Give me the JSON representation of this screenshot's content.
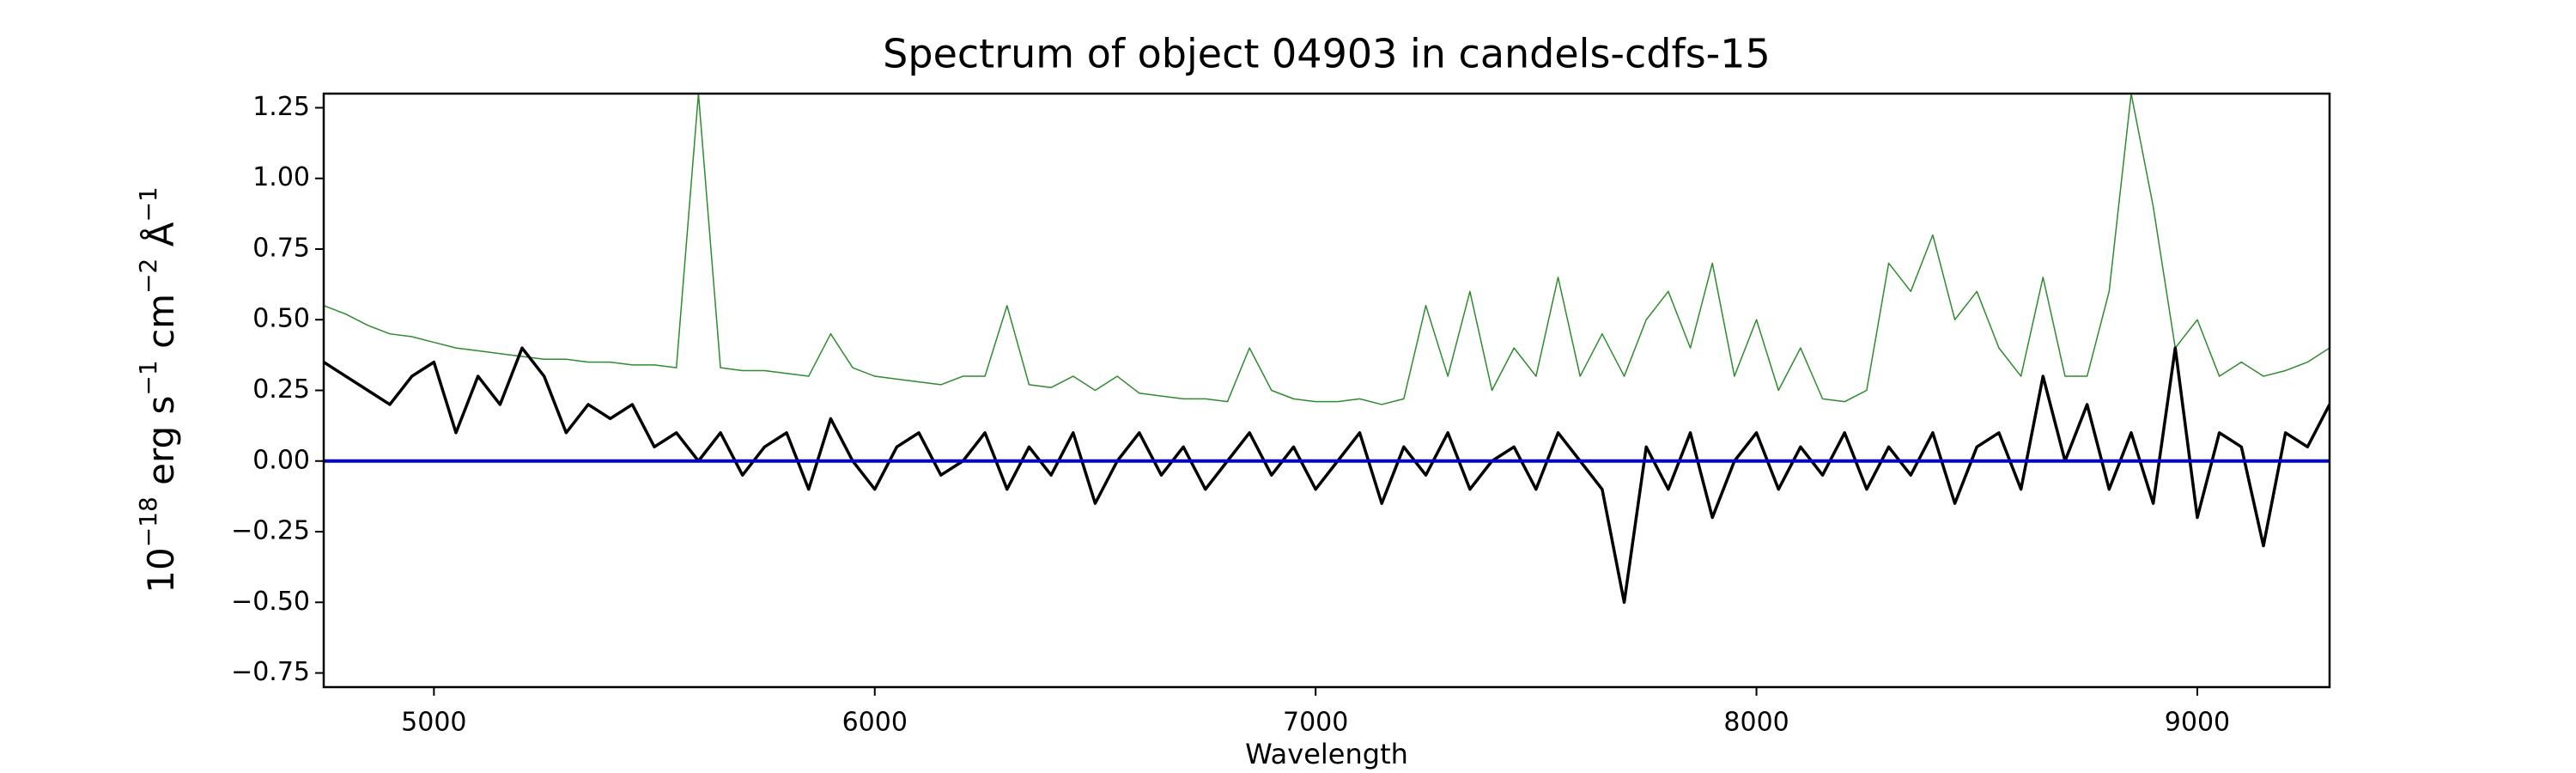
{
  "chart_data": {
    "type": "line",
    "title": "Spectrum of object 04903 in candels-cdfs-15",
    "xlabel": "Wavelength",
    "ylabel": {
      "base": [
        "10",
        " erg s",
        " cm",
        " Å"
      ],
      "sup": [
        "−18",
        "−1",
        "−2",
        "−1"
      ]
    },
    "x": [
      4750,
      4800,
      4850,
      4900,
      4950,
      5000,
      5050,
      5100,
      5150,
      5200,
      5250,
      5300,
      5350,
      5400,
      5450,
      5500,
      5550,
      5600,
      5650,
      5700,
      5750,
      5800,
      5850,
      5900,
      5950,
      6000,
      6050,
      6100,
      6150,
      6200,
      6250,
      6300,
      6350,
      6400,
      6450,
      6500,
      6550,
      6600,
      6650,
      6700,
      6750,
      6800,
      6850,
      6900,
      6950,
      7000,
      7050,
      7100,
      7150,
      7200,
      7250,
      7300,
      7350,
      7400,
      7450,
      7500,
      7550,
      7600,
      7650,
      7700,
      7750,
      7800,
      7850,
      7900,
      7950,
      8000,
      8050,
      8100,
      8150,
      8200,
      8250,
      8300,
      8350,
      8400,
      8450,
      8500,
      8550,
      8600,
      8650,
      8700,
      8750,
      8800,
      8850,
      8900,
      8950,
      9000,
      9050,
      9100,
      9150,
      9200,
      9250,
      9300
    ],
    "series": [
      {
        "color": "#2e8b2e",
        "width": 1.5,
        "values": [
          0.55,
          0.52,
          0.48,
          0.45,
          0.44,
          0.42,
          0.4,
          0.39,
          0.38,
          0.37,
          0.36,
          0.36,
          0.35,
          0.35,
          0.34,
          0.34,
          0.33,
          1.3,
          0.33,
          0.32,
          0.32,
          0.31,
          0.3,
          0.45,
          0.33,
          0.3,
          0.29,
          0.28,
          0.27,
          0.3,
          0.3,
          0.55,
          0.27,
          0.26,
          0.3,
          0.25,
          0.3,
          0.24,
          0.23,
          0.22,
          0.22,
          0.21,
          0.4,
          0.25,
          0.22,
          0.21,
          0.21,
          0.22,
          0.2,
          0.22,
          0.55,
          0.3,
          0.6,
          0.25,
          0.4,
          0.3,
          0.65,
          0.3,
          0.45,
          0.3,
          0.5,
          0.6,
          0.4,
          0.7,
          0.3,
          0.5,
          0.25,
          0.4,
          0.22,
          0.21,
          0.25,
          0.7,
          0.6,
          0.8,
          0.5,
          0.6,
          0.4,
          0.3,
          0.65,
          0.3,
          0.3,
          0.6,
          1.3,
          0.9,
          0.4,
          0.5,
          0.3,
          0.35,
          0.3,
          0.32,
          0.35,
          0.4
        ]
      },
      {
        "color": "#000000",
        "width": 3.5,
        "values": [
          0.35,
          0.3,
          0.25,
          0.2,
          0.3,
          0.35,
          0.1,
          0.3,
          0.2,
          0.4,
          0.3,
          0.1,
          0.2,
          0.15,
          0.2,
          0.05,
          0.1,
          0.0,
          0.1,
          -0.05,
          0.05,
          0.1,
          -0.1,
          0.15,
          0.0,
          -0.1,
          0.05,
          0.1,
          -0.05,
          0.0,
          0.1,
          -0.1,
          0.05,
          -0.05,
          0.1,
          -0.15,
          0.0,
          0.1,
          -0.05,
          0.05,
          -0.1,
          0.0,
          0.1,
          -0.05,
          0.05,
          -0.1,
          0.0,
          0.1,
          -0.15,
          0.05,
          -0.05,
          0.1,
          -0.1,
          0.0,
          0.05,
          -0.1,
          0.1,
          0.0,
          -0.1,
          -0.5,
          0.05,
          -0.1,
          0.1,
          -0.2,
          0.0,
          0.1,
          -0.1,
          0.05,
          -0.05,
          0.1,
          -0.1,
          0.05,
          -0.05,
          0.1,
          -0.15,
          0.05,
          0.1,
          -0.1,
          0.3,
          0.0,
          0.2,
          -0.1,
          0.1,
          -0.15,
          0.4,
          -0.2,
          0.1,
          0.05,
          -0.3,
          0.1,
          0.05,
          0.2
        ]
      }
    ],
    "hlines": [
      {
        "value": 0,
        "color": "#0000cc"
      }
    ],
    "xlim": [
      4750,
      9300
    ],
    "ylim": [
      -0.8,
      1.3
    ],
    "xticks": [
      5000,
      6000,
      7000,
      8000,
      9000
    ],
    "yticks": [
      {
        "value": -0.75,
        "label": "−0.75"
      },
      {
        "value": -0.5,
        "label": "−0.50"
      },
      {
        "value": -0.25,
        "label": "−0.25"
      },
      {
        "value": 0,
        "label": "0.00"
      },
      0.25,
      {
        "value": 0.5,
        "label": "0.50"
      },
      0.75,
      {
        "value": 1,
        "label": "1.00"
      },
      1.25
    ],
    "grid": false
  }
}
